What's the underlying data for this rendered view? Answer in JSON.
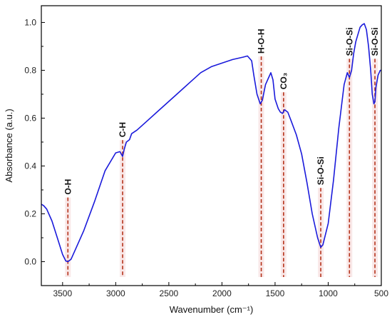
{
  "chart_data": {
    "type": "line",
    "xlabel": "Wavenumber (cm⁻¹)",
    "ylabel": "Absorbance (a.u.)",
    "xlim": [
      3700,
      500
    ],
    "ylim": [
      -0.1,
      1.07
    ],
    "x_ticks": [
      3500,
      3000,
      2500,
      2000,
      1500,
      1000,
      500
    ],
    "y_ticks": [
      0.0,
      0.2,
      0.4,
      0.6,
      0.8,
      1.0
    ],
    "x_tick_labels": [
      "3500",
      "3000",
      "2500",
      "2000",
      "1500",
      "1000",
      "500"
    ],
    "y_tick_labels": [
      "0.0",
      "0.2",
      "0.4",
      "0.6",
      "0.8",
      "1.0"
    ],
    "grid": false,
    "series": [
      {
        "color": "#1a1adb",
        "points": [
          [
            3700,
            0.24
          ],
          [
            3680,
            0.235
          ],
          [
            3650,
            0.22
          ],
          [
            3600,
            0.17
          ],
          [
            3550,
            0.1
          ],
          [
            3500,
            0.03
          ],
          [
            3470,
            0.003
          ],
          [
            3450,
            0.0
          ],
          [
            3420,
            0.01
          ],
          [
            3380,
            0.05
          ],
          [
            3300,
            0.13
          ],
          [
            3200,
            0.25
          ],
          [
            3100,
            0.38
          ],
          [
            3000,
            0.455
          ],
          [
            2960,
            0.46
          ],
          [
            2935,
            0.44
          ],
          [
            2920,
            0.47
          ],
          [
            2900,
            0.5
          ],
          [
            2870,
            0.51
          ],
          [
            2850,
            0.535
          ],
          [
            2800,
            0.55
          ],
          [
            2700,
            0.59
          ],
          [
            2600,
            0.63
          ],
          [
            2500,
            0.67
          ],
          [
            2400,
            0.71
          ],
          [
            2300,
            0.75
          ],
          [
            2200,
            0.79
          ],
          [
            2100,
            0.815
          ],
          [
            2000,
            0.83
          ],
          [
            1900,
            0.845
          ],
          [
            1800,
            0.855
          ],
          [
            1760,
            0.86
          ],
          [
            1720,
            0.84
          ],
          [
            1700,
            0.78
          ],
          [
            1670,
            0.7
          ],
          [
            1640,
            0.66
          ],
          [
            1620,
            0.675
          ],
          [
            1590,
            0.74
          ],
          [
            1560,
            0.77
          ],
          [
            1540,
            0.79
          ],
          [
            1520,
            0.76
          ],
          [
            1500,
            0.68
          ],
          [
            1470,
            0.64
          ],
          [
            1450,
            0.625
          ],
          [
            1430,
            0.62
          ],
          [
            1410,
            0.635
          ],
          [
            1380,
            0.625
          ],
          [
            1350,
            0.59
          ],
          [
            1300,
            0.53
          ],
          [
            1250,
            0.45
          ],
          [
            1200,
            0.33
          ],
          [
            1150,
            0.2
          ],
          [
            1100,
            0.1
          ],
          [
            1070,
            0.06
          ],
          [
            1050,
            0.07
          ],
          [
            1000,
            0.16
          ],
          [
            950,
            0.34
          ],
          [
            900,
            0.56
          ],
          [
            850,
            0.74
          ],
          [
            820,
            0.79
          ],
          [
            800,
            0.77
          ],
          [
            780,
            0.8
          ],
          [
            760,
            0.87
          ],
          [
            740,
            0.92
          ],
          [
            720,
            0.95
          ],
          [
            700,
            0.98
          ],
          [
            680,
            0.99
          ],
          [
            660,
            0.995
          ],
          [
            640,
            0.97
          ],
          [
            620,
            0.9
          ],
          [
            600,
            0.8
          ],
          [
            585,
            0.7
          ],
          [
            570,
            0.66
          ],
          [
            560,
            0.67
          ],
          [
            550,
            0.73
          ],
          [
            530,
            0.78
          ],
          [
            510,
            0.8
          ],
          [
            500,
            0.8
          ]
        ]
      }
    ],
    "annotations": [
      {
        "label": "O-H",
        "x": 3450,
        "label_y": 0.28
      },
      {
        "label": "C-H",
        "x": 2935,
        "label_y": 0.52
      },
      {
        "label": "H-O-H",
        "x": 1630,
        "label_y": 0.87
      },
      {
        "label": "CO₃",
        "x": 1420,
        "label_y": 0.72
      },
      {
        "label": "Si-O-Si",
        "x": 1070,
        "label_y": 0.32
      },
      {
        "label": "Si-O-Si",
        "x": 800,
        "label_y": 0.86
      },
      {
        "label": "Si-O-Si",
        "x": 560,
        "label_y": 0.86
      }
    ]
  }
}
